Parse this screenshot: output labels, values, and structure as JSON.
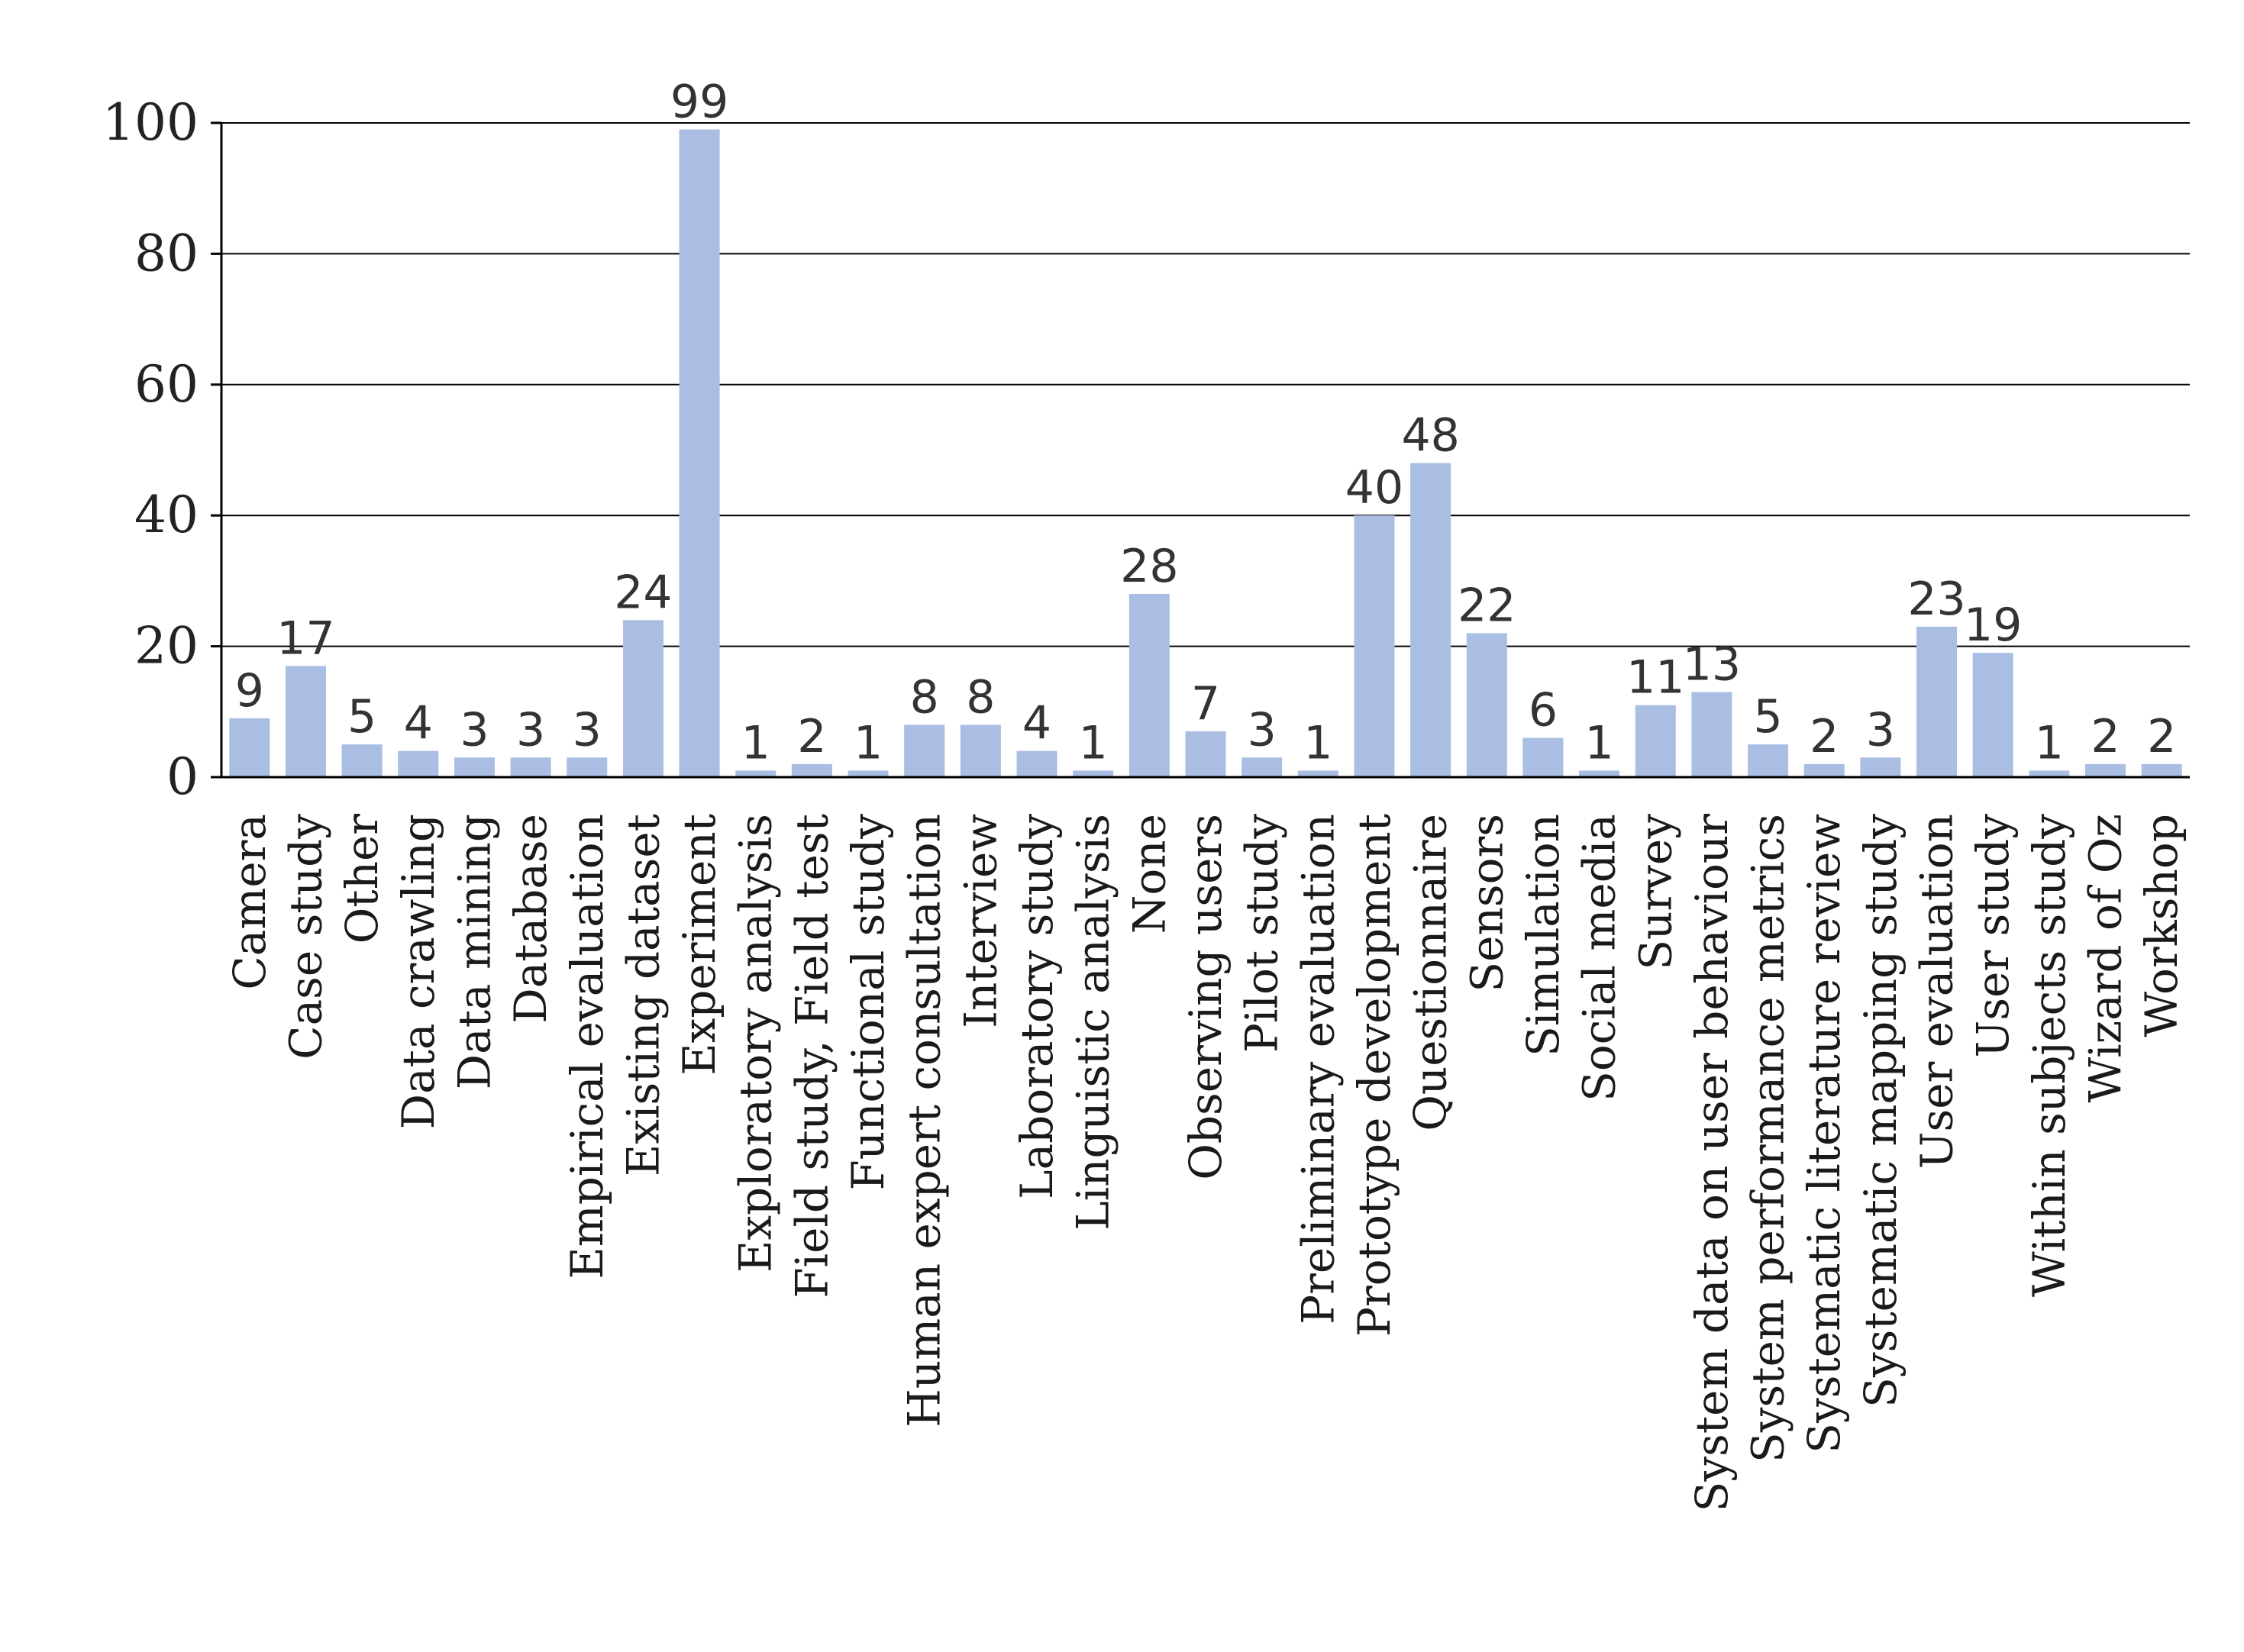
{
  "chart_data": {
    "type": "bar",
    "title": "",
    "xlabel": "",
    "ylabel": "",
    "ylim": [
      0,
      100
    ],
    "yticks": [
      0,
      20,
      40,
      60,
      80,
      100
    ],
    "grid": true,
    "legend": "none",
    "bar_color": "#aabee3",
    "categories": [
      "Camera",
      "Case study",
      "Other",
      "Data crawling",
      "Data mining",
      "Database",
      "Empirical evaluation",
      "Existing dataset",
      "Experiment",
      "Exploratory analysis",
      "Field study, Field test",
      "Functional study",
      "Human expert consultation",
      "Interview",
      "Laboratory study",
      "Linguistic analysis",
      "None",
      "Observing users",
      "Pilot study",
      "Preliminary evaluation",
      "Prototype development",
      "Questionnaire",
      "Sensors",
      "Simulation",
      "Social media",
      "Survey",
      "System data on user behaviour",
      "System performance metrics",
      "Systematic literature review",
      "Systematic mapping study",
      "User evaluation",
      "User study",
      "Within subjects study",
      "Wizard of Oz",
      "Workshop"
    ],
    "values": [
      9,
      17,
      5,
      4,
      3,
      3,
      3,
      24,
      99,
      1,
      2,
      1,
      8,
      8,
      4,
      1,
      28,
      7,
      3,
      1,
      40,
      48,
      22,
      6,
      1,
      11,
      13,
      5,
      2,
      3,
      23,
      19,
      1,
      2,
      2
    ]
  }
}
